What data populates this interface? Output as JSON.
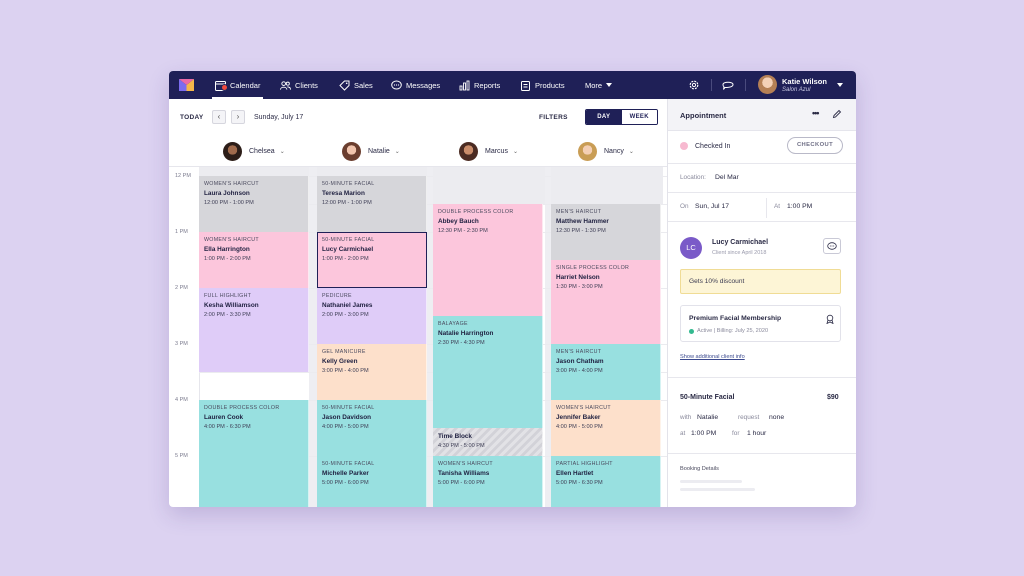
{
  "nav": {
    "items": [
      {
        "label": "Calendar",
        "icon": "calendar-icon"
      },
      {
        "label": "Clients",
        "icon": "users-icon"
      },
      {
        "label": "Sales",
        "icon": "tag-icon"
      },
      {
        "label": "Messages",
        "icon": "chat-icon"
      },
      {
        "label": "Reports",
        "icon": "bar-chart-icon"
      },
      {
        "label": "Products",
        "icon": "clipboard-icon"
      }
    ],
    "more": "More",
    "user": {
      "name": "Katie Wilson",
      "subtitle": "Salon Azul"
    }
  },
  "toolbar": {
    "today": "TODAY",
    "date": "Sunday, July 17",
    "filters": "FILTERS",
    "view_day": "DAY",
    "view_week": "WEEK"
  },
  "staff": [
    {
      "name": "Chelsea"
    },
    {
      "name": "Natalie"
    },
    {
      "name": "Marcus"
    },
    {
      "name": "Nancy"
    }
  ],
  "times": [
    "12 PM",
    "1 PM",
    "2 PM",
    "3 PM",
    "4 PM",
    "5 PM"
  ],
  "appointments": {
    "chelsea": [
      {
        "service": "WOMEN'S HAIRCUT",
        "client": "Laura Johnson",
        "time": "12:00 PM - 1:00 PM"
      },
      {
        "service": "WOMEN'S HAIRCUT",
        "client": "Ella Harrington",
        "time": "1:00 PM - 2:00 PM"
      },
      {
        "service": "FULL HIGHLIGHT",
        "client": "Kesha Williamson",
        "time": "2:00 PM - 3:30 PM"
      },
      {
        "service": "DOUBLE PROCESS COLOR",
        "client": "Lauren Cook",
        "time": "4:00 PM - 6:30 PM"
      }
    ],
    "natalie": [
      {
        "service": "50-MINUTE FACIAL",
        "client": "Teresa Marion",
        "time": "12:00 PM - 1:00 PM"
      },
      {
        "service": "50-MINUTE FACIAL",
        "client": "Lucy Carmichael",
        "time": "1:00 PM - 2:00 PM"
      },
      {
        "service": "PEDICURE",
        "client": "Nathaniel James",
        "time": "2:00 PM - 3:00 PM"
      },
      {
        "service": "GEL MANICURE",
        "client": "Kelly Green",
        "time": "3:00 PM - 4:00 PM"
      },
      {
        "service": "50-MINUTE FACIAL",
        "client": "Jason Davidson",
        "time": "4:00 PM - 5:00 PM"
      },
      {
        "service": "50-MINUTE FACIAL",
        "client": "Michelle Parker",
        "time": "5:00 PM - 6:00 PM"
      }
    ],
    "marcus": [
      {
        "service": "DOUBLE PROCESS COLOR",
        "client": "Abbey Bauch",
        "time": "12:30 PM - 2:30 PM"
      },
      {
        "service": "BALAYAGE",
        "client": "Natalie Harrington",
        "time": "2:30 PM - 4:30 PM"
      },
      {
        "service": "",
        "client": "Time Block",
        "time": "4:30 PM - 5:00 PM"
      },
      {
        "service": "WOMEN'S HAIRCUT",
        "client": "Tanisha Williams",
        "time": "5:00 PM - 6:00 PM"
      }
    ],
    "nancy": [
      {
        "service": "MEN'S HAIRCUT",
        "client": "Matthew Hammer",
        "time": "12:30 PM - 1:30 PM"
      },
      {
        "service": "SINGLE PROCESS COLOR",
        "client": "Harriet Nelson",
        "time": "1:30 PM - 3:00 PM"
      },
      {
        "service": "MEN'S HAIRCUT",
        "client": "Jason Chatham",
        "time": "3:00 PM - 4:00 PM"
      },
      {
        "service": "WOMEN'S HAIRCUT",
        "client": "Jennifer Baker",
        "time": "4:00 PM - 5:00 PM"
      },
      {
        "service": "PARTIAL HIGHLIGHT",
        "client": "Ellen Hartlet",
        "time": "5:00 PM - 6:30 PM"
      }
    ]
  },
  "panel": {
    "title": "Appointment",
    "more": "•••",
    "status": "Checked In",
    "checkout": "CHECKOUT",
    "location_label": "Location:",
    "location": "Del Mar",
    "on_label": "On",
    "on_value": "Sun, Jul 17",
    "at_label": "At",
    "at_value": "1:00 PM",
    "client_initials": "LC",
    "client_name": "Lucy Carmichael",
    "client_since": "Client since April 2018",
    "discount": "Gets 10% discount",
    "membership": "Premium Facial Membership",
    "membership_status": "Active | Billing: July 25, 2020",
    "show_more": "Show additional client info",
    "service": "50-Minute Facial",
    "price": "$90",
    "with_label": "with",
    "with_value": "Natalie",
    "request_label": "request",
    "request_value": "none",
    "at2_label": "at",
    "at2_value": "1:00 PM",
    "for_label": "for",
    "for_value": "1 hour",
    "booking_details": "Booking Details"
  },
  "colors": {
    "nav_bg": "#1f2057",
    "background": "#dcd2f1",
    "gray": "#d6d6da",
    "pink": "#fcc6dc",
    "lavender": "#dfccf8",
    "peach": "#fde0cb",
    "teal": "#98e0e0",
    "badge": "#f04a3e"
  }
}
